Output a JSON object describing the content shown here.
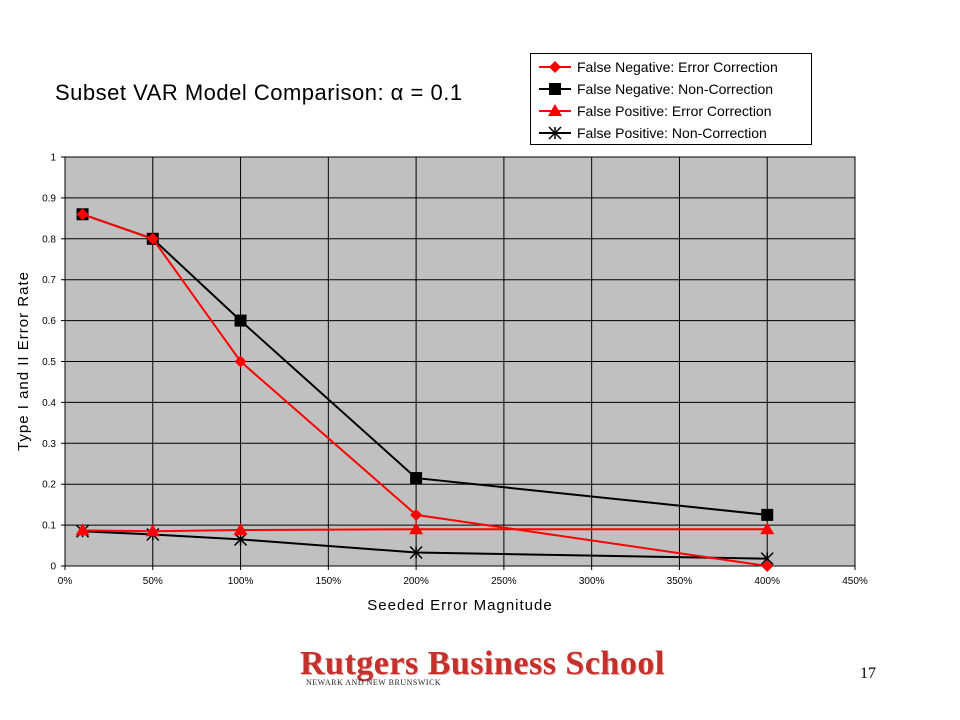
{
  "chart_data": {
    "type": "line",
    "title": "Subset VAR Model Comparison: α = 0.1",
    "xlabel": "Seeded Error Magnitude",
    "ylabel": "Type I and II Error Rate",
    "x": [
      0.1,
      0.5,
      1.0,
      2.0,
      4.0
    ],
    "xlim": [
      0,
      4.5
    ],
    "ylim": [
      0,
      1
    ],
    "x_ticks": [
      "0%",
      "50%",
      "100%",
      "150%",
      "200%",
      "250%",
      "300%",
      "350%",
      "400%",
      "450%"
    ],
    "y_ticks": [
      "0",
      "0.1",
      "0.2",
      "0.3",
      "0.4",
      "0.5",
      "0.6",
      "0.7",
      "0.8",
      "0.9",
      "1"
    ],
    "grid": true,
    "legend_position": "top-right",
    "plot_background": "#c0c0c0",
    "series": [
      {
        "name": "False Negative: Error Correction",
        "color": "#ff0000",
        "marker": "diamond",
        "values": [
          0.86,
          0.8,
          0.5,
          0.125,
          0.0
        ]
      },
      {
        "name": "False Negative: Non-Correction",
        "color": "#000000",
        "marker": "square",
        "values": [
          0.86,
          0.8,
          0.6,
          0.215,
          0.125
        ]
      },
      {
        "name": "False Positive: Error Correction",
        "color": "#ff0000",
        "marker": "triangle",
        "values": [
          0.087,
          0.085,
          0.088,
          0.09,
          0.09
        ]
      },
      {
        "name": "False Positive: Non-Correction",
        "color": "#000000",
        "marker": "star",
        "values": [
          0.085,
          0.077,
          0.065,
          0.033,
          0.018
        ]
      }
    ]
  },
  "footer": {
    "logo_text": "Rutgers Business School",
    "logo_subtext": "NEWARK AND NEW BRUNSWICK",
    "page_number": "17"
  }
}
